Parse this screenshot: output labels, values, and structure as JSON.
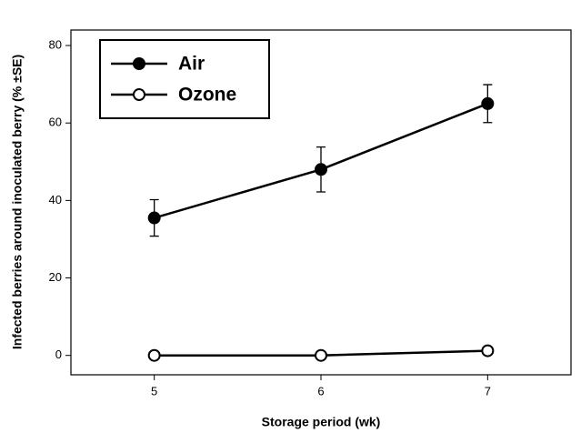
{
  "chart_data": {
    "type": "line",
    "x_label": "Storage period (wk)",
    "y_label": "Infected berries around inoculated berry (% ±SE)",
    "x": [
      5,
      6,
      7
    ],
    "series": [
      {
        "name": "Air",
        "color": "#000000",
        "marker_fill": "#000000",
        "values": [
          35.5,
          48,
          65
        ],
        "errors": [
          4.7,
          5.8,
          4.9
        ]
      },
      {
        "name": "Ozone",
        "color": "#000000",
        "marker_fill": "#ffffff",
        "values": [
          0,
          0,
          1.2
        ],
        "errors": [
          0.3,
          0.3,
          0.5
        ]
      }
    ],
    "xlim": [
      4.5,
      7.5
    ],
    "xticks": [
      5,
      6,
      7
    ],
    "ylim": [
      -5,
      84
    ],
    "yticks": [
      0,
      20,
      40,
      60,
      80
    ],
    "legend": "upper left",
    "grid": false
  }
}
